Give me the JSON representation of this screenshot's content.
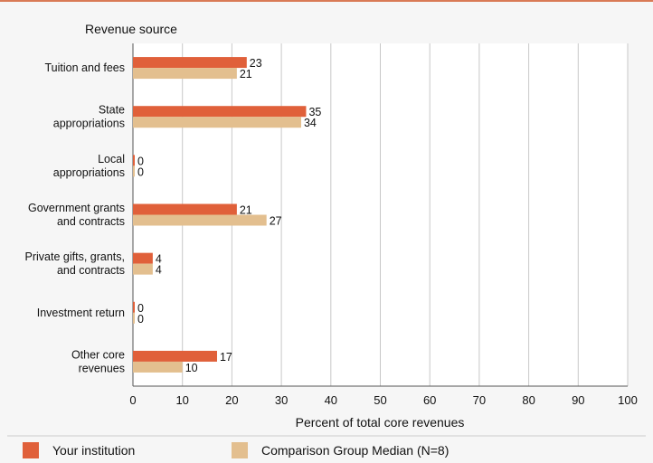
{
  "chart_data": {
    "type": "bar",
    "orientation": "horizontal",
    "title": "Revenue source",
    "xlabel": "Percent of total core revenues",
    "ylabel": "",
    "xlim": [
      0,
      100
    ],
    "xticks": [
      0,
      10,
      20,
      30,
      40,
      50,
      60,
      70,
      80,
      90,
      100
    ],
    "grid": true,
    "legend_position": "bottom",
    "categories": [
      [
        "Tuition and fees"
      ],
      [
        "State",
        "appropriations"
      ],
      [
        "Local",
        "appropriations"
      ],
      [
        "Government grants",
        "and contracts"
      ],
      [
        "Private gifts, grants,",
        "and contracts"
      ],
      [
        "Investment return"
      ],
      [
        "Other core",
        "revenues"
      ]
    ],
    "series": [
      {
        "name": "Your institution",
        "color": "#e0603a",
        "values": [
          23,
          35,
          0,
          21,
          4,
          0,
          17
        ]
      },
      {
        "name": "Comparison Group Median (N=8)",
        "color": "#e3bf8f",
        "values": [
          21,
          34,
          0,
          27,
          4,
          0,
          10
        ]
      }
    ]
  }
}
